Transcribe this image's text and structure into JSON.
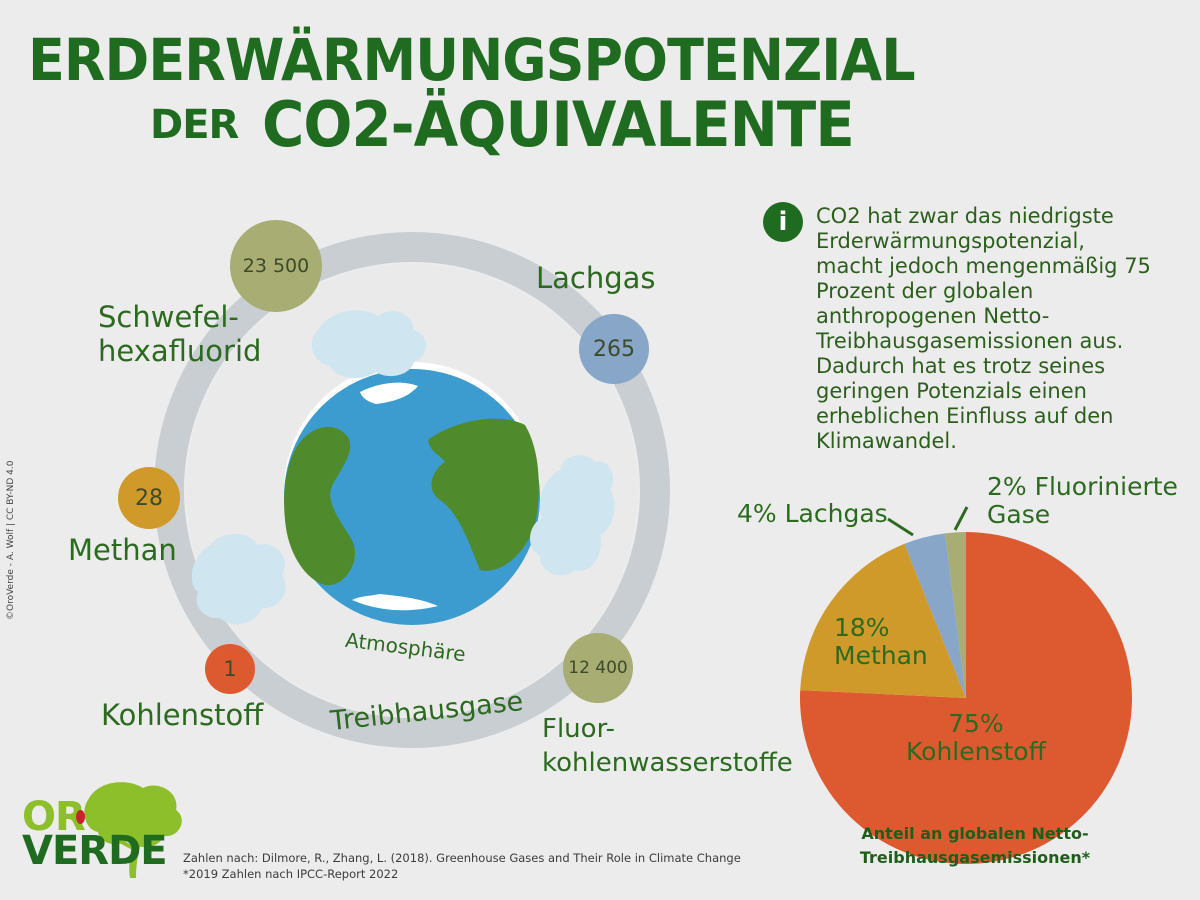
{
  "title": {
    "line1": "ERDERWÄRMUNGSPOTENZIAL",
    "line2a": "DER",
    "line2b": "CO2-ÄQUIVALENTE"
  },
  "gases": [
    {
      "id": "sf6",
      "name_l1": "Schwefel-",
      "name_l2": "hexafluorid",
      "value": "23 500",
      "color": "#a7ad73"
    },
    {
      "id": "n2o",
      "name_l1": "Lachgas",
      "name_l2": "",
      "value": "265",
      "color": "#87a6c8"
    },
    {
      "id": "ch4",
      "name_l1": "Methan",
      "name_l2": "",
      "value": "28",
      "color": "#cf9a2a"
    },
    {
      "id": "co2",
      "name_l1": "Kohlenstoff",
      "name_l2": "",
      "value": "1",
      "color": "#dd5a30"
    },
    {
      "id": "hfc",
      "name_l1": "Fluor-",
      "name_l2": "kohlenwasserstoffe",
      "value": "12 400",
      "color": "#a7ad73"
    }
  ],
  "diagram": {
    "atmosphere_label": "Atmosphäre",
    "ring_label": "Treibhausgase"
  },
  "info": {
    "icon": "info-icon",
    "text": "CO2 hat zwar das niedrigste Erderwärmungspotenzial, macht jedoch mengenmäßig 75 Prozent der globalen anthropogenen Netto-Treibhausgasemissionen aus. Dadurch hat es trotz seines geringen Potenzials einen erheblichen Einfluss auf den Klimawandel."
  },
  "chart_data": {
    "type": "pie",
    "title": "Anteil an globalen Netto-Treibhausgasemissionen*",
    "slices": [
      {
        "label": "Kohlenstoff",
        "value": 75,
        "color": "#dd5a30"
      },
      {
        "label": "Methan",
        "value": 18,
        "color": "#cf9a2a"
      },
      {
        "label": "Lachgas",
        "value": 4,
        "color": "#87a6c8"
      },
      {
        "label": "Fluorinierte Gase",
        "value": 2,
        "color": "#a7ad73"
      }
    ],
    "labels": {
      "co2_pct": "75%",
      "co2_name": "Kohlenstoff",
      "ch4_pct": "18%",
      "ch4_name": "Methan",
      "n2o": "4% Lachgas",
      "fgas_l1": "2% Fluorinierte",
      "fgas_l2": "Gase"
    },
    "caption_l1": "Anteil an globalen Netto-",
    "caption_l2": "Treibhausgasemissionen*"
  },
  "footer": {
    "source": "Zahlen nach: Dilmore, R., Zhang, L. (2018). Greenhouse Gases  and Their Role in Climate Change",
    "note": "*2019 Zahlen nach IPCC-Report 2022",
    "copyright": "©OroVerde - A. Wolf | CC BY-ND 4.0",
    "logo_l1": "ORO",
    "logo_l2": "VERDE"
  },
  "colors": {
    "title_green": "#1f6b20",
    "text_green": "#2c6a1f",
    "ring_grey": "#c9ced3",
    "ocean": "#3c9ccf",
    "land": "#4f8a2c",
    "cloud": "#cfe5ef",
    "logo_green": "#8dbf2b"
  }
}
